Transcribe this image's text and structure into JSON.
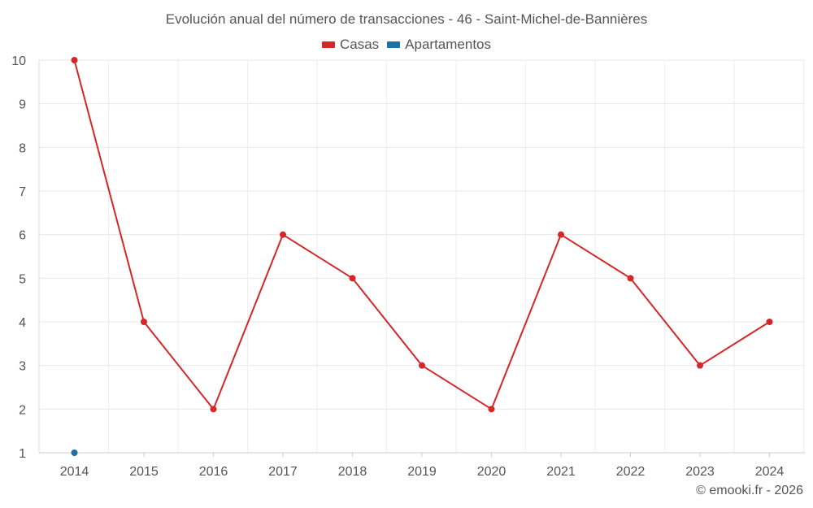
{
  "chart_data": {
    "type": "line",
    "title": "Evolución anual del número de transacciones - 46 - Saint-Michel-de-Bannières",
    "categories": [
      "2014",
      "2015",
      "2016",
      "2017",
      "2018",
      "2019",
      "2020",
      "2021",
      "2022",
      "2023",
      "2024"
    ],
    "series": [
      {
        "name": "Casas",
        "color": "#d62728",
        "values": [
          10,
          4,
          2,
          6,
          5,
          3,
          2,
          6,
          5,
          3,
          4
        ]
      },
      {
        "name": "Apartamentos",
        "color": "#1f6fa8",
        "values": [
          1,
          null,
          null,
          null,
          null,
          null,
          null,
          null,
          null,
          null,
          null
        ]
      }
    ],
    "yticks": [
      "1",
      "2",
      "3",
      "4",
      "5",
      "6",
      "7",
      "8",
      "9",
      "10"
    ],
    "ylim": [
      1,
      10
    ],
    "xlabel": "",
    "ylabel": "",
    "grid": true,
    "legend_position": "top-center"
  },
  "credit": "© emooki.fr - 2026"
}
